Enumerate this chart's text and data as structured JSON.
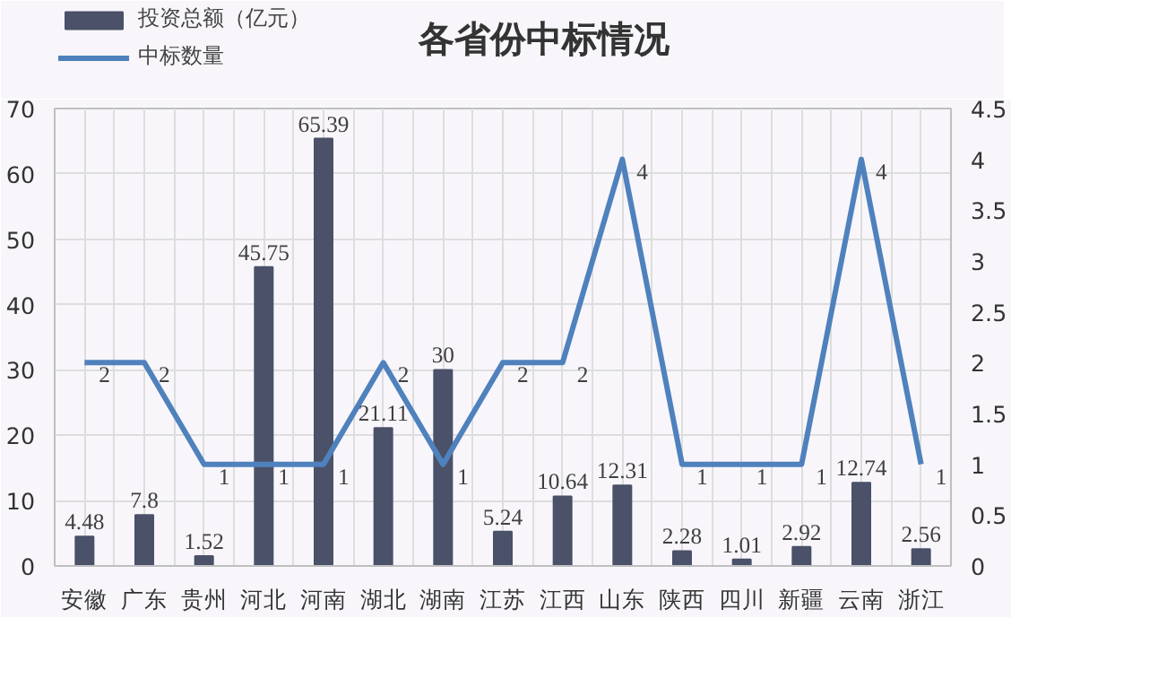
{
  "chart_data": {
    "type": "bar",
    "title": "各省份中标情况",
    "categories": [
      "安徽",
      "广东",
      "贵州",
      "河北",
      "河南",
      "湖北",
      "湖南",
      "江苏",
      "江西",
      "山东",
      "陕西",
      "四川",
      "新疆",
      "云南",
      "浙江"
    ],
    "series": [
      {
        "name": "投资总额（亿元）",
        "type": "bar",
        "color": "#4a5169",
        "values": [
          4.48,
          7.8,
          1.52,
          45.75,
          65.39,
          21.11,
          30,
          5.24,
          10.64,
          12.31,
          2.28,
          1.01,
          2.92,
          12.74,
          2.56
        ]
      },
      {
        "name": "中标数量",
        "type": "line",
        "axis": "y2",
        "color": "#4f81bd",
        "values": [
          2,
          2,
          1,
          1,
          1,
          2,
          1,
          2,
          2,
          4,
          1,
          1,
          1,
          4,
          1
        ]
      }
    ],
    "ylim": [
      0,
      70
    ],
    "yticks": [
      0,
      10,
      20,
      30,
      40,
      50,
      60,
      70
    ],
    "y2lim": [
      0,
      4.5
    ],
    "y2ticks": [
      0,
      0.5,
      1,
      1.5,
      2,
      2.5,
      3,
      3.5,
      4,
      4.5
    ],
    "data_labels": true,
    "grid": true,
    "legend": "top left",
    "marker": "none",
    "line_style": "solid"
  }
}
